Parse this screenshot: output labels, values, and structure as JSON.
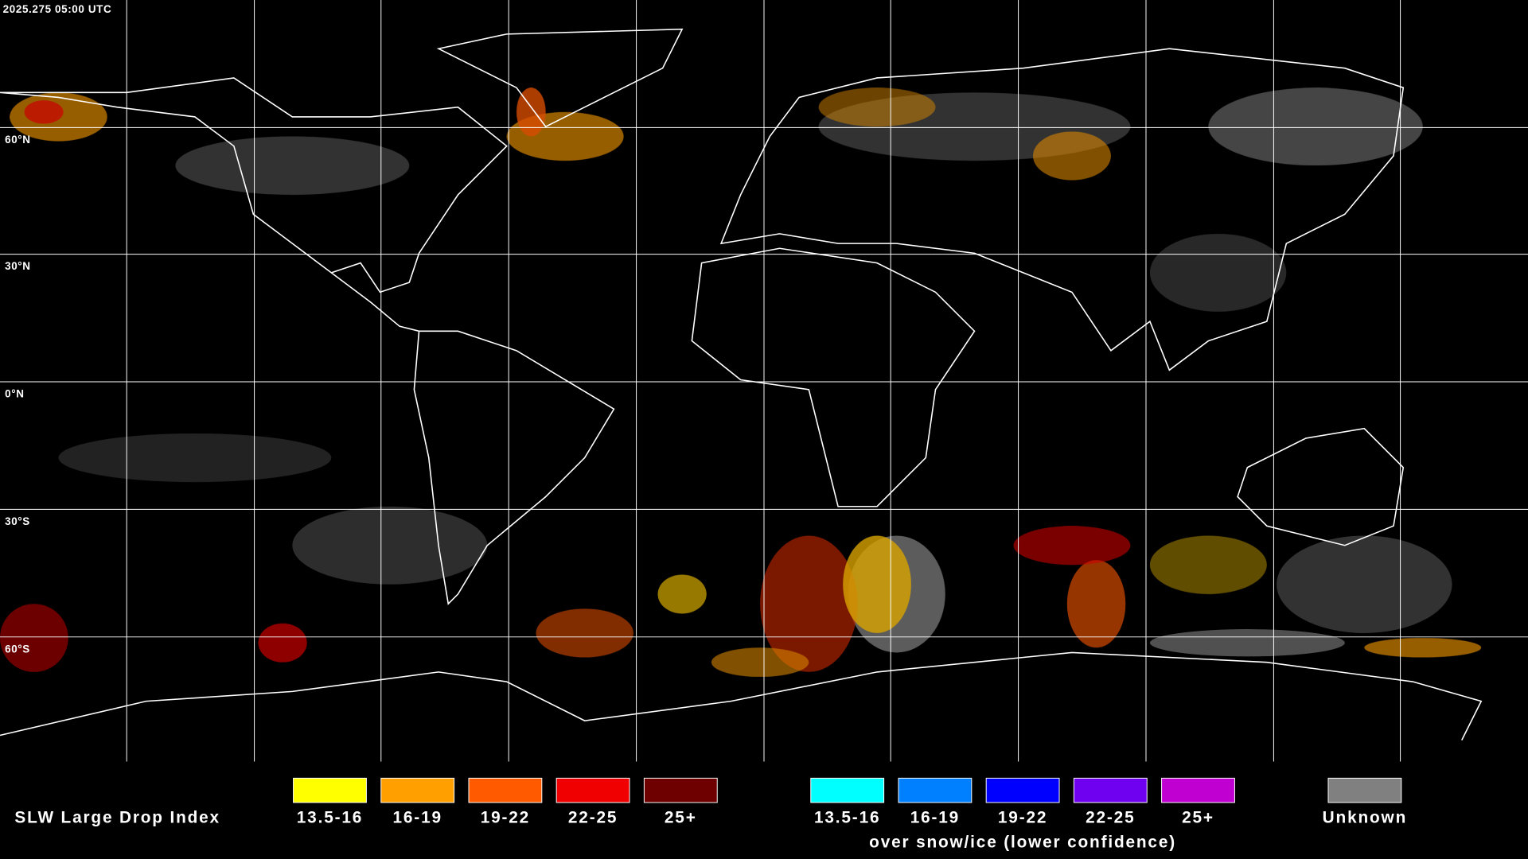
{
  "timestamp": "2025.275 05:00 UTC",
  "latitude_labels": [
    "60°N",
    "30°N",
    "0°N",
    "30°S",
    "60°S"
  ],
  "legend": {
    "title": "SLW Large Drop Index",
    "groups": [
      {
        "items": [
          {
            "label": "13.5-16",
            "color": "#ffff00"
          },
          {
            "label": "16-19",
            "color": "#ff9f00"
          },
          {
            "label": "19-22",
            "color": "#ff5a00"
          },
          {
            "label": "22-25",
            "color": "#f00000"
          },
          {
            "label": "25+",
            "color": "#6e0000"
          }
        ]
      },
      {
        "caption": "over snow/ice (lower confidence)",
        "items": [
          {
            "label": "13.5-16",
            "color": "#00ffff"
          },
          {
            "label": "16-19",
            "color": "#0080ff"
          },
          {
            "label": "19-22",
            "color": "#0000ff"
          },
          {
            "label": "22-25",
            "color": "#7000f0"
          },
          {
            "label": "25+",
            "color": "#c000d0"
          }
        ]
      },
      {
        "items": [
          {
            "label": "Unknown",
            "color": "#808080"
          }
        ]
      }
    ]
  }
}
